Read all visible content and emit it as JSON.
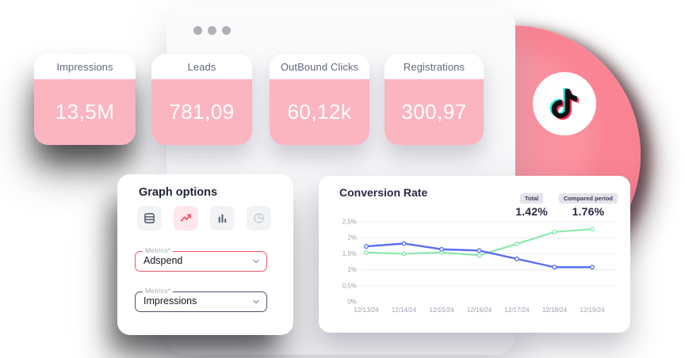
{
  "window": {
    "type": "app-window"
  },
  "metric_cards": [
    {
      "label": "Impressions",
      "value": "13,5M"
    },
    {
      "label": "Leads",
      "value": "781,09"
    },
    {
      "label": "OutBound Clicks",
      "value": "60,12k"
    },
    {
      "label": "Registrations",
      "value": "300,97"
    }
  ],
  "tiktok": {
    "logo": "tiktok-note-logo"
  },
  "graph_options": {
    "title": "Graph options",
    "tools": [
      {
        "name": "table-view",
        "active": false,
        "disabled": false
      },
      {
        "name": "line-chart-view",
        "active": true,
        "disabled": false
      },
      {
        "name": "bar-chart-view",
        "active": false,
        "disabled": false
      },
      {
        "name": "pie-chart-view",
        "active": false,
        "disabled": true
      }
    ],
    "metric_select_1": {
      "label": "Metrics*",
      "value": "Adspend"
    },
    "metric_select_2": {
      "label": "Metrics*",
      "value": "Impressions"
    }
  },
  "conversion": {
    "title": "Conversion Rate",
    "summary": [
      {
        "badge": "Total",
        "value": "1.42%"
      },
      {
        "badge": "Compared period",
        "value": "1.76%"
      }
    ],
    "chart_data": {
      "type": "line",
      "title": "Conversion Rate",
      "x": [
        "12/13/24",
        "12/14/24",
        "12/15/24",
        "12/16/24",
        "12/17/24",
        "12/18/24",
        "12/19/24"
      ],
      "series": [
        {
          "name": "Total",
          "color": "#5A6CF3",
          "values": [
            1.73,
            1.82,
            1.64,
            1.6,
            1.34,
            1.08,
            1.08
          ]
        },
        {
          "name": "Compared period",
          "color": "#82E9A8",
          "values": [
            1.54,
            1.5,
            1.54,
            1.45,
            1.81,
            2.18,
            2.27
          ]
        }
      ],
      "y_ticks": [
        {
          "v": 2.5,
          "label": "2,5%"
        },
        {
          "v": 2.0,
          "label": "2%"
        },
        {
          "v": 1.5,
          "label": "1,5%"
        },
        {
          "v": 1.0,
          "label": "1%"
        },
        {
          "v": 0.5,
          "label": "0,5%"
        },
        {
          "v": 0.0,
          "label": "0%"
        }
      ],
      "ylim": [
        0,
        2.5
      ],
      "grid": true,
      "legend": "none"
    }
  },
  "colors": {
    "card_pink": "#FAB5C1",
    "accent_pink": "#F5536F",
    "circle_pink": "#FA8493",
    "blue_line": "#5A6CF3",
    "green_line": "#82E9A8",
    "tiktok_cyan": "#25F4EE",
    "tiktok_red": "#FE2C55"
  }
}
